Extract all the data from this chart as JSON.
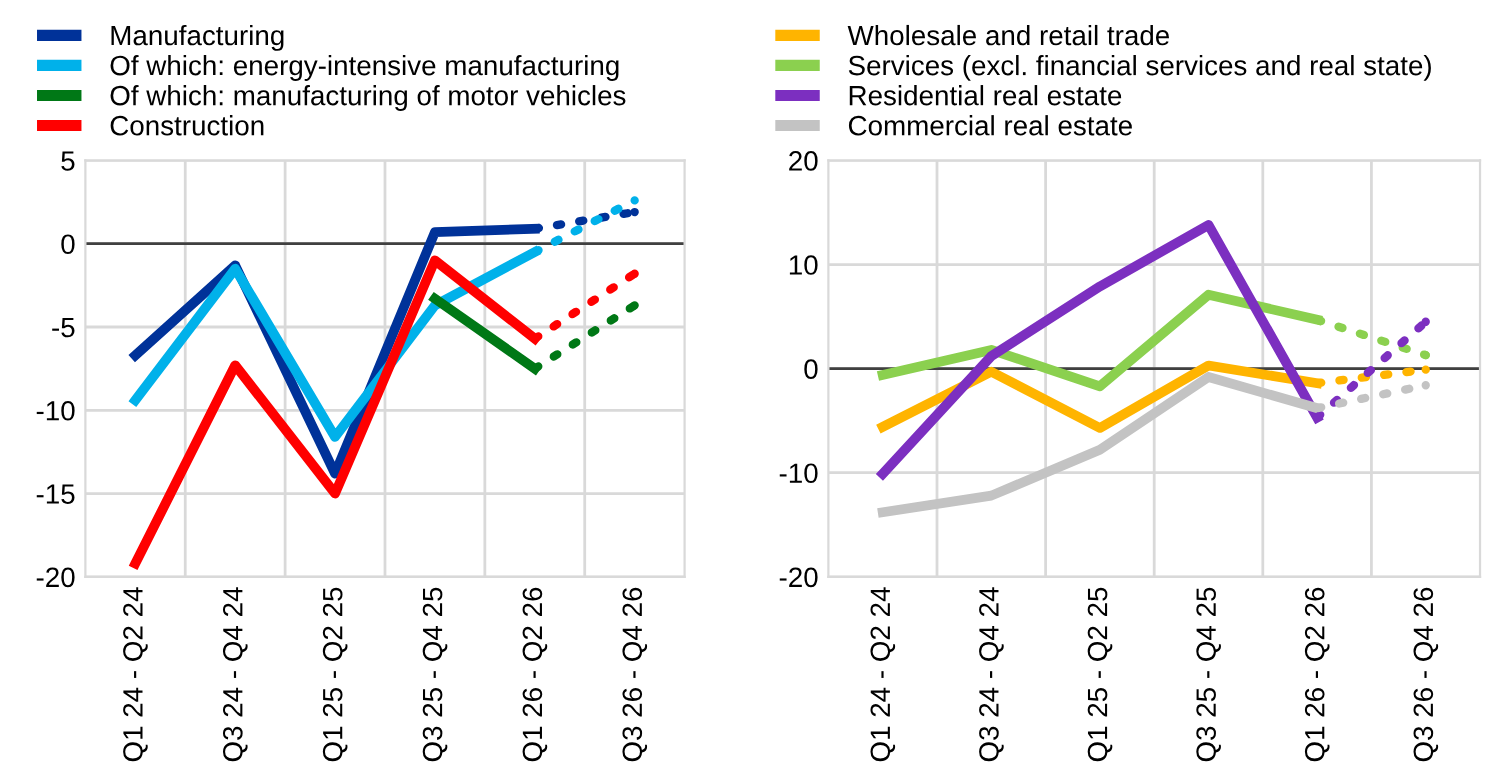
{
  "chart_data": [
    {
      "type": "line",
      "categories": [
        "Q1 24 - Q2 24",
        "Q3 24 - Q4 24",
        "Q1 25 - Q2 25",
        "Q3 25 - Q4 25",
        "Q1 26 - Q2 26",
        "Q3 26 - Q4 26"
      ],
      "ylim": [
        -20,
        5
      ],
      "yticks": [
        -20,
        -15,
        -10,
        -5,
        0,
        5
      ],
      "grid": true,
      "legend": "top left",
      "ref_lines": [
        {
          "axis": "y",
          "value": 0,
          "color": "#404040"
        }
      ],
      "series": [
        {
          "name": "Manufacturing",
          "color": "#003299",
          "values": [
            -6.7,
            -1.3,
            -13.8,
            0.7,
            0.9,
            null
          ]
        },
        {
          "name": "Of which: energy-intensive manufacturing",
          "color": "#00b1ea",
          "values": [
            -9.4,
            -1.5,
            -11.6,
            -3.7,
            -0.5,
            null
          ]
        },
        {
          "name": "Of which: manufacturing of motor vehicles",
          "color": "#007816",
          "values": [
            null,
            null,
            null,
            -3.3,
            -7.5,
            null
          ]
        },
        {
          "name": "Construction",
          "color": "#ff0000",
          "values": [
            -19.2,
            -7.3,
            -15.0,
            -1.0,
            -5.7,
            null
          ]
        },
        {
          "color": "#003299",
          "line_style": "dotted",
          "values": [
            null,
            null,
            null,
            null,
            0.9,
            1.9
          ]
        },
        {
          "color": "#00b1ea",
          "line_style": "dotted",
          "values": [
            null,
            null,
            null,
            null,
            -0.5,
            2.6
          ]
        },
        {
          "color": "#007816",
          "line_style": "dotted",
          "values": [
            null,
            null,
            null,
            null,
            -7.5,
            -3.7
          ]
        },
        {
          "color": "#ff0000",
          "line_style": "dotted",
          "values": [
            null,
            null,
            null,
            null,
            -5.7,
            -1.8
          ]
        }
      ]
    },
    {
      "type": "line",
      "categories": [
        "Q1 24 - Q2 24",
        "Q3 24 - Q4 24",
        "Q1 25 - Q2 25",
        "Q3 25 - Q4 25",
        "Q1 26 - Q2 26",
        "Q3 26 - Q4 26"
      ],
      "ylim": [
        -20,
        20
      ],
      "yticks": [
        -20,
        -10,
        0,
        10,
        20
      ],
      "grid": true,
      "legend": "top left",
      "ref_lines": [
        {
          "axis": "y",
          "value": 0,
          "color": "#404040"
        }
      ],
      "series": [
        {
          "name": "Wholesale and retail trade",
          "color": "#ffb400",
          "values": [
            -5.6,
            -0.3,
            -5.7,
            0.3,
            -1.4,
            null
          ]
        },
        {
          "name": "Services (excl. financial services and real state)",
          "color": "#8bd04f",
          "values": [
            -0.6,
            1.8,
            -1.7,
            7.1,
            4.7,
            null
          ]
        },
        {
          "name": "Residential real estate",
          "color": "#7c2fc0",
          "values": [
            -10.1,
            1.2,
            7.9,
            13.8,
            -4.7,
            null
          ]
        },
        {
          "name": "Commercial real estate",
          "color": "#c3c3c3",
          "values": [
            -13.8,
            -12.2,
            -7.8,
            -0.8,
            -3.8,
            null
          ]
        },
        {
          "color": "#ffb400",
          "line_style": "dotted",
          "values": [
            null,
            null,
            null,
            null,
            -1.4,
            -0.1
          ]
        },
        {
          "color": "#8bd04f",
          "line_style": "dotted",
          "values": [
            null,
            null,
            null,
            null,
            4.7,
            1.3
          ]
        },
        {
          "color": "#7c2fc0",
          "line_style": "dotted",
          "values": [
            null,
            null,
            null,
            null,
            -4.7,
            4.5
          ]
        },
        {
          "color": "#c3c3c3",
          "line_style": "dotted",
          "values": [
            null,
            null,
            null,
            null,
            -3.8,
            -1.6
          ]
        }
      ]
    }
  ]
}
